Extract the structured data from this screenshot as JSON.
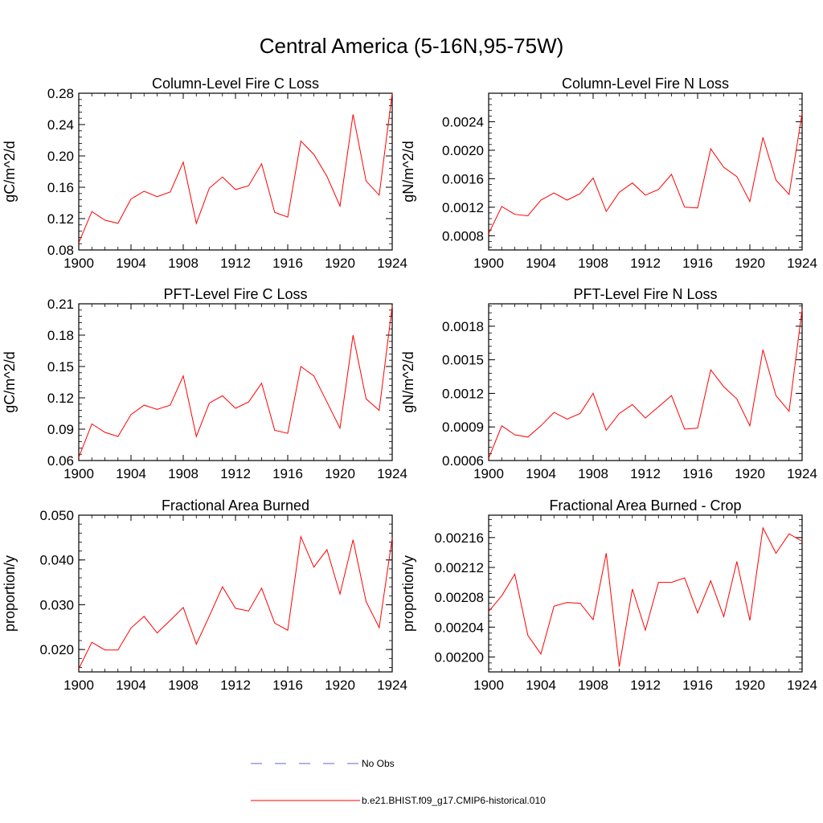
{
  "title": "Central America (5-16N,95-75W)",
  "chart_data": [
    {
      "type": "line",
      "title": "Column-Level Fire C Loss",
      "ylabel": "gC/m^2/d",
      "xlim": [
        1900,
        1924
      ],
      "ylim": [
        0.08,
        0.28
      ],
      "xticks": [
        "1900",
        "1904",
        "1908",
        "1912",
        "1916",
        "1920",
        "1924"
      ],
      "yticks": [
        "0.08",
        "0.12",
        "0.16",
        "0.20",
        "0.24",
        "0.28"
      ],
      "x": [
        1900,
        1901,
        1902,
        1903,
        1904,
        1905,
        1906,
        1907,
        1908,
        1909,
        1910,
        1911,
        1912,
        1913,
        1914,
        1915,
        1916,
        1917,
        1918,
        1919,
        1920,
        1921,
        1922,
        1923,
        1924
      ],
      "series": [
        {
          "name": "b.e21.BHIST.f09_g17.CMIP6-historical.010",
          "values": [
            0.089,
            0.129,
            0.118,
            0.114,
            0.145,
            0.155,
            0.148,
            0.154,
            0.192,
            0.114,
            0.159,
            0.173,
            0.157,
            0.162,
            0.19,
            0.128,
            0.122,
            0.219,
            0.202,
            0.174,
            0.136,
            0.253,
            0.168,
            0.15,
            0.28
          ]
        }
      ]
    },
    {
      "type": "line",
      "title": "Column-Level Fire N Loss",
      "ylabel": "gN/m^2/d",
      "xlim": [
        1900,
        1924
      ],
      "ylim": [
        0.0006,
        0.0028
      ],
      "xticks": [
        "1900",
        "1904",
        "1908",
        "1912",
        "1916",
        "1920",
        "1924"
      ],
      "yticks": [
        "0.0008",
        "0.0012",
        "0.0016",
        "0.0020",
        "0.0024"
      ],
      "x": [
        1900,
        1901,
        1902,
        1903,
        1904,
        1905,
        1906,
        1907,
        1908,
        1909,
        1910,
        1911,
        1912,
        1913,
        1914,
        1915,
        1916,
        1917,
        1918,
        1919,
        1920,
        1921,
        1922,
        1923,
        1924
      ],
      "series": [
        {
          "name": "b.e21.BHIST.f09_g17.CMIP6-historical.010",
          "values": [
            0.00083,
            0.00121,
            0.0011,
            0.00108,
            0.0013,
            0.0014,
            0.0013,
            0.00139,
            0.00161,
            0.00114,
            0.00141,
            0.00154,
            0.00137,
            0.00145,
            0.00166,
            0.0012,
            0.00119,
            0.00202,
            0.00176,
            0.00163,
            0.00128,
            0.00218,
            0.00158,
            0.00138,
            0.00252
          ]
        }
      ]
    },
    {
      "type": "line",
      "title": "PFT-Level Fire C Loss",
      "ylabel": "gC/m^2/d",
      "xlim": [
        1900,
        1924
      ],
      "ylim": [
        0.06,
        0.21
      ],
      "xticks": [
        "1900",
        "1904",
        "1908",
        "1912",
        "1916",
        "1920",
        "1924"
      ],
      "yticks": [
        "0.06",
        "0.09",
        "0.12",
        "0.15",
        "0.18",
        "0.21"
      ],
      "x": [
        1900,
        1901,
        1902,
        1903,
        1904,
        1905,
        1906,
        1907,
        1908,
        1909,
        1910,
        1911,
        1912,
        1913,
        1914,
        1915,
        1916,
        1917,
        1918,
        1919,
        1920,
        1921,
        1922,
        1923,
        1924
      ],
      "series": [
        {
          "name": "b.e21.BHIST.f09_g17.CMIP6-historical.010",
          "values": [
            0.063,
            0.095,
            0.087,
            0.083,
            0.104,
            0.113,
            0.109,
            0.113,
            0.141,
            0.083,
            0.115,
            0.122,
            0.11,
            0.116,
            0.134,
            0.089,
            0.086,
            0.15,
            0.141,
            0.116,
            0.091,
            0.18,
            0.119,
            0.108,
            0.208
          ]
        }
      ]
    },
    {
      "type": "line",
      "title": "PFT-Level Fire N Loss",
      "ylabel": "gN/m^2/d",
      "xlim": [
        1900,
        1924
      ],
      "ylim": [
        0.0006,
        0.002
      ],
      "xticks": [
        "1900",
        "1904",
        "1908",
        "1912",
        "1916",
        "1920",
        "1924"
      ],
      "yticks": [
        "0.0006",
        "0.0009",
        "0.0012",
        "0.0015",
        "0.0018"
      ],
      "x": [
        1900,
        1901,
        1902,
        1903,
        1904,
        1905,
        1906,
        1907,
        1908,
        1909,
        1910,
        1911,
        1912,
        1913,
        1914,
        1915,
        1916,
        1917,
        1918,
        1919,
        1920,
        1921,
        1922,
        1923,
        1924
      ],
      "series": [
        {
          "name": "b.e21.BHIST.f09_g17.CMIP6-historical.010",
          "values": [
            0.00062,
            0.00091,
            0.00083,
            0.00081,
            0.00091,
            0.00103,
            0.00097,
            0.00102,
            0.0012,
            0.00087,
            0.00102,
            0.0011,
            0.00098,
            0.00108,
            0.00118,
            0.00088,
            0.00089,
            0.00141,
            0.00126,
            0.00115,
            0.00091,
            0.00159,
            0.00118,
            0.00104,
            0.00195
          ]
        }
      ]
    },
    {
      "type": "line",
      "title": "Fractional Area Burned",
      "ylabel": "proportion/y",
      "xlim": [
        1900,
        1924
      ],
      "ylim": [
        0.015,
        0.05
      ],
      "xticks": [
        "1900",
        "1904",
        "1908",
        "1912",
        "1916",
        "1920",
        "1924"
      ],
      "yticks": [
        "0.020",
        "0.030",
        "0.040",
        "0.050"
      ],
      "x": [
        1900,
        1901,
        1902,
        1903,
        1904,
        1905,
        1906,
        1907,
        1908,
        1909,
        1910,
        1911,
        1912,
        1913,
        1914,
        1915,
        1916,
        1917,
        1918,
        1919,
        1920,
        1921,
        1922,
        1923,
        1924
      ],
      "series": [
        {
          "name": "b.e21.BHIST.f09_g17.CMIP6-historical.010",
          "values": [
            0.0157,
            0.0216,
            0.0199,
            0.0199,
            0.0248,
            0.0274,
            0.0237,
            0.0265,
            0.0294,
            0.0212,
            0.0275,
            0.034,
            0.0292,
            0.0286,
            0.0337,
            0.0259,
            0.0243,
            0.0452,
            0.0384,
            0.0423,
            0.0324,
            0.0445,
            0.0307,
            0.0249,
            0.0449
          ]
        }
      ]
    },
    {
      "type": "line",
      "title": "Fractional Area Burned - Crop",
      "ylabel": "proportion/y",
      "xlim": [
        1900,
        1924
      ],
      "ylim": [
        0.00198,
        0.00219
      ],
      "xticks": [
        "1900",
        "1904",
        "1908",
        "1912",
        "1916",
        "1920",
        "1924"
      ],
      "yticks": [
        "0.00200",
        "0.00204",
        "0.00208",
        "0.00212",
        "0.00216"
      ],
      "x": [
        1900,
        1901,
        1902,
        1903,
        1904,
        1905,
        1906,
        1907,
        1908,
        1909,
        1910,
        1911,
        1912,
        1913,
        1914,
        1915,
        1916,
        1917,
        1918,
        1919,
        1920,
        1921,
        1922,
        1923,
        1924
      ],
      "series": [
        {
          "name": "b.e21.BHIST.f09_g17.CMIP6-historical.010",
          "values": [
            0.002061,
            0.002082,
            0.002111,
            0.002029,
            0.002004,
            0.002068,
            0.002073,
            0.002072,
            0.00205,
            0.002139,
            0.001987,
            0.002091,
            0.002036,
            0.0021,
            0.0021,
            0.002106,
            0.002059,
            0.002102,
            0.002054,
            0.002128,
            0.002049,
            0.002173,
            0.002139,
            0.002165,
            0.002155
          ]
        }
      ]
    }
  ],
  "legend": [
    {
      "label": "No Obs",
      "color": "#6666cc",
      "dash": true
    },
    {
      "label": "b.e21.BHIST.f09_g17.CMIP6-historical.010",
      "color": "#ff0000",
      "dash": false
    }
  ]
}
